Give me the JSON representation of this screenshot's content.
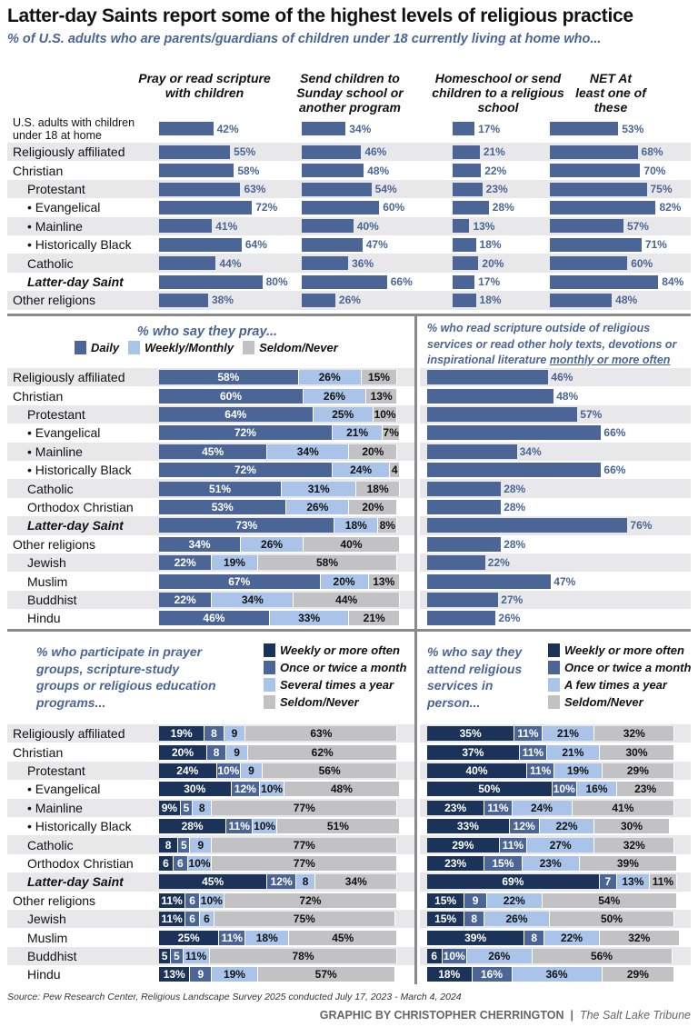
{
  "title": "Latter-day Saints report some of the highest levels of religious practice",
  "subtitle": "% of U.S. adults who are parents/guardians of children under 18 currently living at home who...",
  "pray_section": {
    "title": "% who say they pray..."
  },
  "scripture_section": {
    "title": "% who read scripture outside of religious services or read other holy texts, devotions or inspirational literature",
    "title_emphasis": "monthly or more often"
  },
  "groups_section": {
    "title": "% who participate in prayer groups, scripture-study groups or religious education programs..."
  },
  "attend_section": {
    "title": "% who say they attend religious services in person..."
  },
  "highlight": "Latter-day Saint",
  "colors": {
    "primary": "#4a6596",
    "light": "#a9c4e8",
    "gray": "#c2c2c4",
    "navy": "#1b3358",
    "stripe": "#e8e8ea"
  },
  "source": "Source: Pew Research Center, Religious Landscape Survey 2025 conducted July 17, 2023 - March 4, 2024",
  "credit": {
    "author": "GRAPHIC BY CHRISTOPHER CHERRINGTON",
    "outlet": "The Salt Lake Tribune"
  },
  "chart_data": [
    {
      "type": "bar",
      "categories": [
        "U.S. adults with children under 18 at home",
        "Religiously affiliated",
        "Christian",
        "Protestant",
        "• Evangelical",
        "• Mainline",
        "• Historically Black",
        "Catholic",
        "Latter-day Saint",
        "Other religions"
      ],
      "levels": [
        0,
        0,
        0,
        1,
        2,
        2,
        2,
        1,
        1,
        0
      ],
      "series": [
        {
          "name": "Pray or read scripture with children",
          "values": [
            42,
            55,
            58,
            63,
            72,
            41,
            64,
            44,
            80,
            38
          ]
        },
        {
          "name": "Send children to Sunday school or another program",
          "values": [
            34,
            46,
            48,
            54,
            60,
            40,
            47,
            36,
            66,
            26
          ]
        },
        {
          "name": "Homeschool or send children to a religious school",
          "values": [
            17,
            21,
            22,
            23,
            28,
            13,
            18,
            20,
            17,
            18
          ]
        },
        {
          "name": "NET At least one of these",
          "values": [
            53,
            68,
            70,
            75,
            82,
            57,
            71,
            60,
            84,
            48
          ]
        }
      ],
      "unit": "%"
    },
    {
      "type": "bar",
      "stacked": true,
      "title": "% who say they pray...",
      "categories": [
        "Religiously affiliated",
        "Christian",
        "Protestant",
        "• Evangelical",
        "• Mainline",
        "• Historically Black",
        "Catholic",
        "Orthodox Christian",
        "Latter-day Saint",
        "Other religions",
        "Jewish",
        "Muslim",
        "Buddhist",
        "Hindu"
      ],
      "levels": [
        0,
        0,
        1,
        2,
        2,
        2,
        1,
        1,
        1,
        0,
        1,
        1,
        1,
        1
      ],
      "legend": "top",
      "series": [
        {
          "name": "Daily",
          "color": "#4a6596",
          "values": [
            58,
            60,
            64,
            72,
            45,
            72,
            51,
            53,
            73,
            34,
            22,
            67,
            22,
            46
          ],
          "labels": [
            "58%",
            "60%",
            "64%",
            "72%",
            "45%",
            "72%",
            "51%",
            "53%",
            "73%",
            "34%",
            "22%",
            "67%",
            "22%",
            "46%"
          ]
        },
        {
          "name": "Weekly/Monthly",
          "color": "#a9c4e8",
          "values": [
            26,
            26,
            25,
            21,
            34,
            24,
            31,
            26,
            18,
            26,
            19,
            20,
            34,
            33
          ],
          "labels": [
            "26%",
            "26%",
            "25%",
            "21%",
            "34%",
            "24%",
            "31%",
            "26%",
            "18%",
            "26%",
            "19%",
            "20%",
            "34%",
            "33%"
          ]
        },
        {
          "name": "Seldom/Never",
          "color": "#c2c2c4",
          "values": [
            15,
            13,
            10,
            7,
            20,
            4,
            18,
            20,
            8,
            40,
            58,
            13,
            44,
            21
          ],
          "labels": [
            "15%",
            "13%",
            "10%",
            "7%",
            "20%",
            "4",
            "18%",
            "20%",
            "8%",
            "40%",
            "58%",
            "13%",
            "44%",
            "21%"
          ]
        }
      ]
    },
    {
      "type": "bar",
      "title": "% who read scripture outside of religious services or read other holy texts, devotions or inspirational literature monthly or more often",
      "values": [
        46,
        48,
        57,
        66,
        34,
        66,
        28,
        28,
        76,
        28,
        22,
        47,
        27,
        26
      ],
      "labels": [
        "46%",
        "48%",
        "57%",
        "66%",
        "34%",
        "66%",
        "28%",
        "28%",
        "76%",
        "28%",
        "22%",
        "47%",
        "27%",
        "26%"
      ]
    },
    {
      "type": "bar",
      "stacked": true,
      "title": "% who participate in prayer groups, scripture-study groups or religious education programs...",
      "categories": [
        "Religiously affiliated",
        "Christian",
        "Protestant",
        "• Evangelical",
        "• Mainline",
        "• Historically Black",
        "Catholic",
        "Orthodox Christian",
        "Latter-day Saint",
        "Other religions",
        "Jewish",
        "Muslim",
        "Buddhist",
        "Hindu"
      ],
      "levels": [
        0,
        0,
        1,
        2,
        2,
        2,
        1,
        1,
        1,
        0,
        1,
        1,
        1,
        1
      ],
      "legend": "top-right",
      "series": [
        {
          "name": "Weekly or more often",
          "color": "#1b3358",
          "values": [
            19,
            20,
            24,
            30,
            9,
            28,
            8,
            6,
            45,
            11,
            11,
            25,
            5,
            13
          ],
          "labels": [
            "19%",
            "20%",
            "24%",
            "30%",
            "9%",
            "28%",
            "8",
            "6",
            "45%",
            "11%",
            "11%",
            "25%",
            "5",
            "13%"
          ]
        },
        {
          "name": "Once or twice a month",
          "color": "#4a6596",
          "values": [
            8,
            8,
            10,
            12,
            5,
            11,
            5,
            6,
            12,
            6,
            6,
            11,
            5,
            9
          ],
          "labels": [
            "8",
            "8",
            "10%",
            "12%",
            "5",
            "11%",
            "5",
            "6",
            "12%",
            "6",
            "6",
            "11%",
            "5",
            "9"
          ]
        },
        {
          "name": "Several times a year",
          "color": "#a9c4e8",
          "values": [
            9,
            9,
            9,
            10,
            8,
            10,
            9,
            10,
            8,
            10,
            6,
            18,
            11,
            19
          ],
          "labels": [
            "9",
            "9",
            "9",
            "10%",
            "8",
            "10%",
            "9",
            "10%",
            "8",
            "10%",
            "6",
            "18%",
            "11%",
            "19%"
          ]
        },
        {
          "name": "Seldom/Never",
          "color": "#c2c2c4",
          "values": [
            63,
            62,
            56,
            48,
            77,
            51,
            77,
            77,
            34,
            72,
            75,
            45,
            78,
            57
          ],
          "labels": [
            "63%",
            "62%",
            "56%",
            "48%",
            "77%",
            "51%",
            "77%",
            "77%",
            "34%",
            "72%",
            "75%",
            "45%",
            "78%",
            "57%"
          ]
        }
      ]
    },
    {
      "type": "bar",
      "stacked": true,
      "title": "% who say they attend religious services in person...",
      "legend": "top-right",
      "series": [
        {
          "name": "Weekly or more often",
          "color": "#1b3358",
          "values": [
            35,
            37,
            40,
            50,
            23,
            33,
            29,
            23,
            69,
            15,
            15,
            39,
            6,
            18
          ],
          "labels": [
            "35%",
            "37%",
            "40%",
            "50%",
            "23%",
            "33%",
            "29%",
            "23%",
            "69%",
            "15%",
            "15%",
            "39%",
            "6",
            "18%"
          ]
        },
        {
          "name": "Once or twice a month",
          "color": "#4a6596",
          "values": [
            11,
            11,
            11,
            10,
            11,
            12,
            11,
            15,
            7,
            9,
            8,
            8,
            10,
            16
          ],
          "labels": [
            "11%",
            "11%",
            "11%",
            "10%",
            "11%",
            "12%",
            "11%",
            "15%",
            "7",
            "9",
            "8",
            "8",
            "10%",
            "16%"
          ]
        },
        {
          "name": "A few times a year",
          "color": "#a9c4e8",
          "values": [
            21,
            21,
            19,
            16,
            24,
            22,
            27,
            23,
            13,
            22,
            26,
            22,
            26,
            36
          ],
          "labels": [
            "21%",
            "21%",
            "19%",
            "16%",
            "24%",
            "22%",
            "27%",
            "23%",
            "13%",
            "22%",
            "26%",
            "22%",
            "26%",
            "36%"
          ]
        },
        {
          "name": "Seldom/Never",
          "color": "#c2c2c4",
          "values": [
            32,
            30,
            29,
            23,
            41,
            30,
            32,
            39,
            11,
            54,
            50,
            32,
            56,
            29
          ],
          "labels": [
            "32%",
            "30%",
            "29%",
            "23%",
            "41%",
            "30%",
            "32%",
            "39%",
            "11%",
            "54%",
            "50%",
            "32%",
            "56%",
            "29%"
          ]
        }
      ]
    }
  ]
}
